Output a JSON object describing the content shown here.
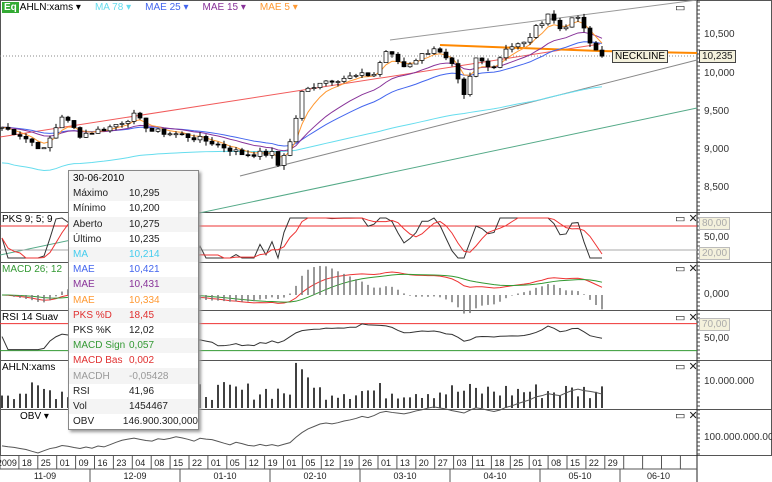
{
  "header": {
    "symbol": "AHLN:xams",
    "logo": "Eq",
    "indicators": [
      {
        "label": "MA 78",
        "color": "#66ddee"
      },
      {
        "label": "MAE 25",
        "color": "#4466ee"
      },
      {
        "label": "MAE 15",
        "color": "#883399"
      },
      {
        "label": "MAE 5",
        "color": "#ff9933"
      }
    ]
  },
  "panels": {
    "pks": "PKS 9; 5; 9",
    "macd": "MACD 26; 12",
    "rsi": "RSI 14 Suav",
    "vol": "AHLN:xams",
    "obv": "OBV"
  },
  "axis": {
    "price": [
      "10,500",
      "10,000",
      "9,500",
      "9,000",
      "8,500"
    ],
    "last_price": "10,235",
    "pks": "50,00",
    "pks_hi": "80,00",
    "pks_lo": "20,00",
    "macd": "0,000",
    "rsi": "50,00",
    "rsi_hi": "70,00",
    "vol": "10.000.000",
    "obv": "100.000.000.000"
  },
  "neckline": "NECKLINE",
  "tooltip": {
    "date": "30-06-2010",
    "rows": [
      {
        "k": "Máximo",
        "v": "10,295",
        "c": "#222"
      },
      {
        "k": "Mínimo",
        "v": "10,200",
        "c": "#222"
      },
      {
        "k": "Aberto",
        "v": "10,275",
        "c": "#222"
      },
      {
        "k": "Último",
        "v": "10,235",
        "c": "#222"
      },
      {
        "k": "MA",
        "v": "10,214",
        "c": "#44ccee"
      },
      {
        "k": "MAE",
        "v": "10,421",
        "c": "#4466ee"
      },
      {
        "k": "MAE",
        "v": "10,431",
        "c": "#883399"
      },
      {
        "k": "MAE",
        "v": "10,334",
        "c": "#ff9933"
      },
      {
        "k": "PKS %D",
        "v": "18,45",
        "c": "#e03030"
      },
      {
        "k": "PKS %K",
        "v": "12,02",
        "c": "#222"
      },
      {
        "k": "MACD Sign",
        "v": "0,057",
        "c": "#339933"
      },
      {
        "k": "MACD Bas",
        "v": "0,002",
        "c": "#e03030"
      },
      {
        "k": "MACDH",
        "v": "-0,05428",
        "c": "#999"
      },
      {
        "k": "RSI",
        "v": "41,96",
        "c": "#222"
      },
      {
        "k": "Vol",
        "v": "1454467",
        "c": "#222"
      },
      {
        "k": "OBV",
        "v": "146.900.300,000",
        "c": "#222"
      }
    ]
  },
  "chart_data": {
    "type": "line",
    "title": "AHLN:xams",
    "ylim": [
      8300,
      10900
    ],
    "price_path": [
      [
        0,
        9300
      ],
      [
        3,
        9200
      ],
      [
        7,
        9000
      ],
      [
        10,
        9450
      ],
      [
        13,
        9200
      ],
      [
        18,
        9300
      ],
      [
        22,
        9450
      ],
      [
        25,
        9250
      ],
      [
        30,
        9200
      ],
      [
        35,
        9100
      ],
      [
        40,
        8950
      ],
      [
        45,
        8950
      ],
      [
        46,
        8800
      ],
      [
        48,
        9100
      ],
      [
        50,
        9750
      ],
      [
        53,
        9900
      ],
      [
        57,
        9950
      ],
      [
        62,
        10000
      ],
      [
        64,
        10300
      ],
      [
        67,
        10100
      ],
      [
        72,
        10350
      ],
      [
        75,
        10100
      ],
      [
        77,
        9700
      ],
      [
        79,
        10200
      ],
      [
        82,
        10100
      ],
      [
        84,
        10350
      ],
      [
        87,
        10400
      ],
      [
        91,
        10800
      ],
      [
        93,
        10600
      ],
      [
        96,
        10750
      ],
      [
        98,
        10400
      ],
      [
        100,
        10235
      ]
    ],
    "day_ticks": [
      "2009",
      "18",
      "25",
      "01",
      "09",
      "16",
      "23",
      "04",
      "08",
      "15",
      "22",
      "01",
      "05",
      "12",
      "19",
      "01",
      "05",
      "12",
      "19",
      "26",
      "01",
      "13",
      "20",
      "27",
      "03",
      "11",
      "18",
      "25",
      "01",
      "08",
      "15",
      "22",
      "29"
    ],
    "months": [
      "11-09",
      "12-09",
      "01-10",
      "02-10",
      "03-10",
      "04-10",
      "05-10",
      "06-10"
    ]
  }
}
